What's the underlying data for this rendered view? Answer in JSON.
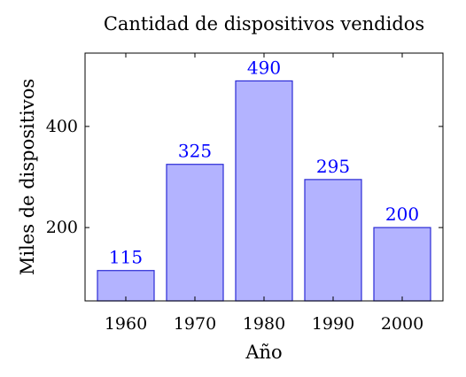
{
  "chart_data": {
    "type": "bar",
    "title": "Cantidad de dispositivos vendidos",
    "xlabel": "Año",
    "ylabel": "Miles de dispositivos",
    "categories": [
      "1960",
      "1970",
      "1980",
      "1990",
      "2000"
    ],
    "values": [
      115,
      325,
      490,
      295,
      200
    ],
    "ylim": [
      55,
      545
    ],
    "yticks": [
      200,
      400
    ],
    "grid": false,
    "colors": {
      "bar_fill": "#b3b3ff",
      "bar_stroke": "#2b2bd6",
      "data_label": "#0000ff"
    }
  }
}
